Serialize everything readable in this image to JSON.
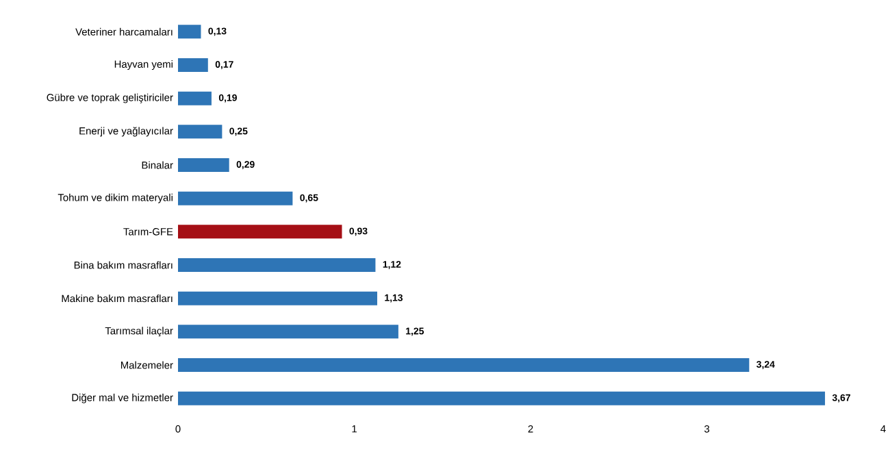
{
  "chart_data": {
    "type": "bar",
    "orientation": "horizontal",
    "categories": [
      "Veteriner harcamaları",
      "Hayvan yemi",
      "Gübre ve toprak geliştiriciler",
      "Enerji ve yağlayıcılar",
      "Binalar",
      "Tohum ve dikim materyali",
      "Tarım-GFE",
      "Bina bakım masrafları",
      "Makine bakım masrafları",
      "Tarımsal ilaçlar",
      "Malzemeler",
      "Diğer mal ve hizmetler"
    ],
    "values": [
      0.13,
      0.17,
      0.19,
      0.25,
      0.29,
      0.65,
      0.93,
      1.12,
      1.13,
      1.25,
      3.24,
      3.67
    ],
    "value_labels": [
      "0,13",
      "0,17",
      "0,19",
      "0,25",
      "0,29",
      "0,65",
      "0,93",
      "1,12",
      "1,13",
      "1,25",
      "3,24",
      "3,67"
    ],
    "colors": [
      "#2e75b6",
      "#2e75b6",
      "#2e75b6",
      "#2e75b6",
      "#2e75b6",
      "#2e75b6",
      "#a50f15",
      "#2e75b6",
      "#2e75b6",
      "#2e75b6",
      "#2e75b6",
      "#2e75b6"
    ],
    "xlim": [
      0,
      4
    ],
    "xticks": [
      0,
      1,
      2,
      3,
      4
    ]
  }
}
